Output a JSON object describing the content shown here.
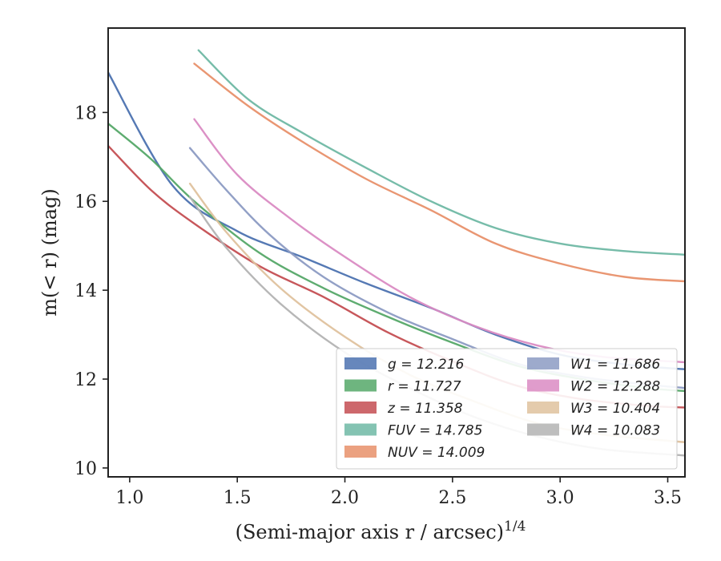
{
  "chart_data": {
    "type": "line",
    "xlabel": "(Semi-major axis r / arcsec)",
    "xlabel_sup": "1/4",
    "ylabel": "m(< r) (mag)",
    "xlim": [
      0.9,
      3.58
    ],
    "ylim": [
      19.9,
      9.8
    ],
    "y_inverted": true,
    "xticks": [
      "1.0",
      "1.5",
      "2.0",
      "2.5",
      "3.0",
      "3.5"
    ],
    "yticks": [
      "10",
      "12",
      "14",
      "16",
      "18"
    ],
    "legend_placement": "lower-right",
    "legend_columns": 2,
    "series": [
      {
        "name": "g = 12.216",
        "color": "#4c72b0",
        "x": [
          0.9,
          1.2,
          1.5,
          1.8,
          2.1,
          2.4,
          2.7,
          3.0,
          3.3,
          3.58
        ],
        "y": [
          18.9,
          16.35,
          15.33,
          14.75,
          14.15,
          13.6,
          13.0,
          12.55,
          12.33,
          12.22
        ]
      },
      {
        "name": "r = 11.727",
        "color": "#55a868",
        "x": [
          0.9,
          1.1,
          1.3,
          1.6,
          1.9,
          2.2,
          2.5,
          2.8,
          3.1,
          3.4,
          3.58
        ],
        "y": [
          17.75,
          16.95,
          16.0,
          14.85,
          14.05,
          13.4,
          12.82,
          12.3,
          12.0,
          11.8,
          11.73
        ]
      },
      {
        "name": "z = 11.358",
        "color": "#c44e52",
        "x": [
          0.9,
          1.1,
          1.3,
          1.6,
          1.9,
          2.2,
          2.5,
          2.8,
          3.1,
          3.4,
          3.58
        ],
        "y": [
          17.25,
          16.25,
          15.5,
          14.55,
          13.85,
          13.05,
          12.4,
          11.85,
          11.55,
          11.4,
          11.36
        ]
      },
      {
        "name": "FUV = 14.785",
        "color": "#6fb8a4",
        "x": [
          1.32,
          1.55,
          1.8,
          2.1,
          2.4,
          2.7,
          3.0,
          3.3,
          3.58
        ],
        "y": [
          19.4,
          18.3,
          17.55,
          16.75,
          16.0,
          15.4,
          15.05,
          14.88,
          14.8
        ]
      },
      {
        "name": "NUV = 14.009",
        "color": "#e8906a",
        "x": [
          1.3,
          1.55,
          1.8,
          2.1,
          2.4,
          2.7,
          3.0,
          3.3,
          3.58
        ],
        "y": [
          19.1,
          18.15,
          17.35,
          16.5,
          15.8,
          15.05,
          14.6,
          14.3,
          14.2
        ]
      },
      {
        "name": "W1 = 11.686",
        "color": "#8c9bc3",
        "x": [
          1.28,
          1.45,
          1.65,
          1.9,
          2.2,
          2.5,
          2.8,
          3.1,
          3.4,
          3.58
        ],
        "y": [
          17.2,
          16.25,
          15.25,
          14.3,
          13.5,
          12.9,
          12.35,
          12.05,
          11.88,
          11.8
        ]
      },
      {
        "name": "W2 = 12.288",
        "color": "#da8bc3",
        "x": [
          1.3,
          1.5,
          1.75,
          2.0,
          2.3,
          2.6,
          2.9,
          3.2,
          3.58
        ],
        "y": [
          17.85,
          16.6,
          15.6,
          14.75,
          13.85,
          13.2,
          12.75,
          12.5,
          12.38
        ]
      },
      {
        "name": "W3 = 10.404",
        "color": "#dfc29e",
        "x": [
          1.28,
          1.45,
          1.7,
          2.0,
          2.3,
          2.6,
          2.9,
          3.2,
          3.58
        ],
        "y": [
          16.4,
          15.3,
          14.05,
          12.95,
          12.1,
          11.5,
          11.0,
          10.75,
          10.58
        ]
      },
      {
        "name": "W4 = 10.083",
        "color": "#b3b3b3",
        "x": [
          1.28,
          1.45,
          1.7,
          2.0,
          2.3,
          2.6,
          2.9,
          3.2,
          3.58
        ],
        "y": [
          16.1,
          14.95,
          13.7,
          12.6,
          11.8,
          11.15,
          10.7,
          10.42,
          10.28
        ]
      }
    ]
  }
}
